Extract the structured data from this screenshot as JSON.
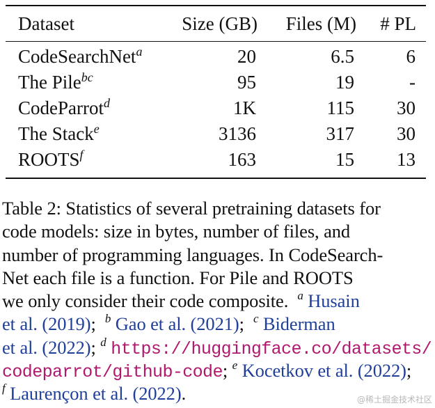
{
  "table": {
    "headers": {
      "dataset": "Dataset",
      "size": "Size (GB)",
      "files": "Files (M)",
      "pl": "# PL"
    },
    "rows": [
      {
        "dataset": "CodeSearchNet",
        "sup": "a",
        "size": "20",
        "files": "6.5",
        "pl": "6"
      },
      {
        "dataset": "The Pile",
        "sup": "bc",
        "size": "95",
        "files": "19",
        "pl": "-"
      },
      {
        "dataset": "CodeParrot",
        "sup": "d",
        "size": "1K",
        "files": "115",
        "pl": "30"
      },
      {
        "dataset": "The Stack",
        "sup": "e",
        "size": "3136",
        "files": "317",
        "pl": "30"
      },
      {
        "dataset": "ROOTS",
        "sup": "f",
        "size": "163",
        "files": "15",
        "pl": "13"
      }
    ]
  },
  "caption": {
    "l1": "Table 2: Statistics of several pretraining datasets for",
    "l2": "code models: size in bytes, number of files, and",
    "l3": "number of programming languages. In CodeSearch-",
    "l4": "Net each file is a function. For Pile and ROOTS",
    "l5_text": "we only consider their code composite.",
    "l5_sup": "a",
    "l5_cite": "Husain",
    "l6_cite_a": "et al. (2019)",
    "l6_sup_b": "b",
    "l6_cite_b": "Gao et al. (2021)",
    "l6_sup_c": "c",
    "l6_cite_c": "Biderman",
    "l7_cite": "et al. (2022)",
    "l7_sup": "d",
    "l7_url": "https://huggingface.co/datasets/",
    "l8_url": "codeparrot/github-code",
    "l8_sup": "e",
    "l8_cite": "Kocetkov et al. (2022)",
    "l9_sup": "f",
    "l9_cite": "Laurençon et al. (2022)"
  },
  "watermark": "@稀土掘金技术社区"
}
